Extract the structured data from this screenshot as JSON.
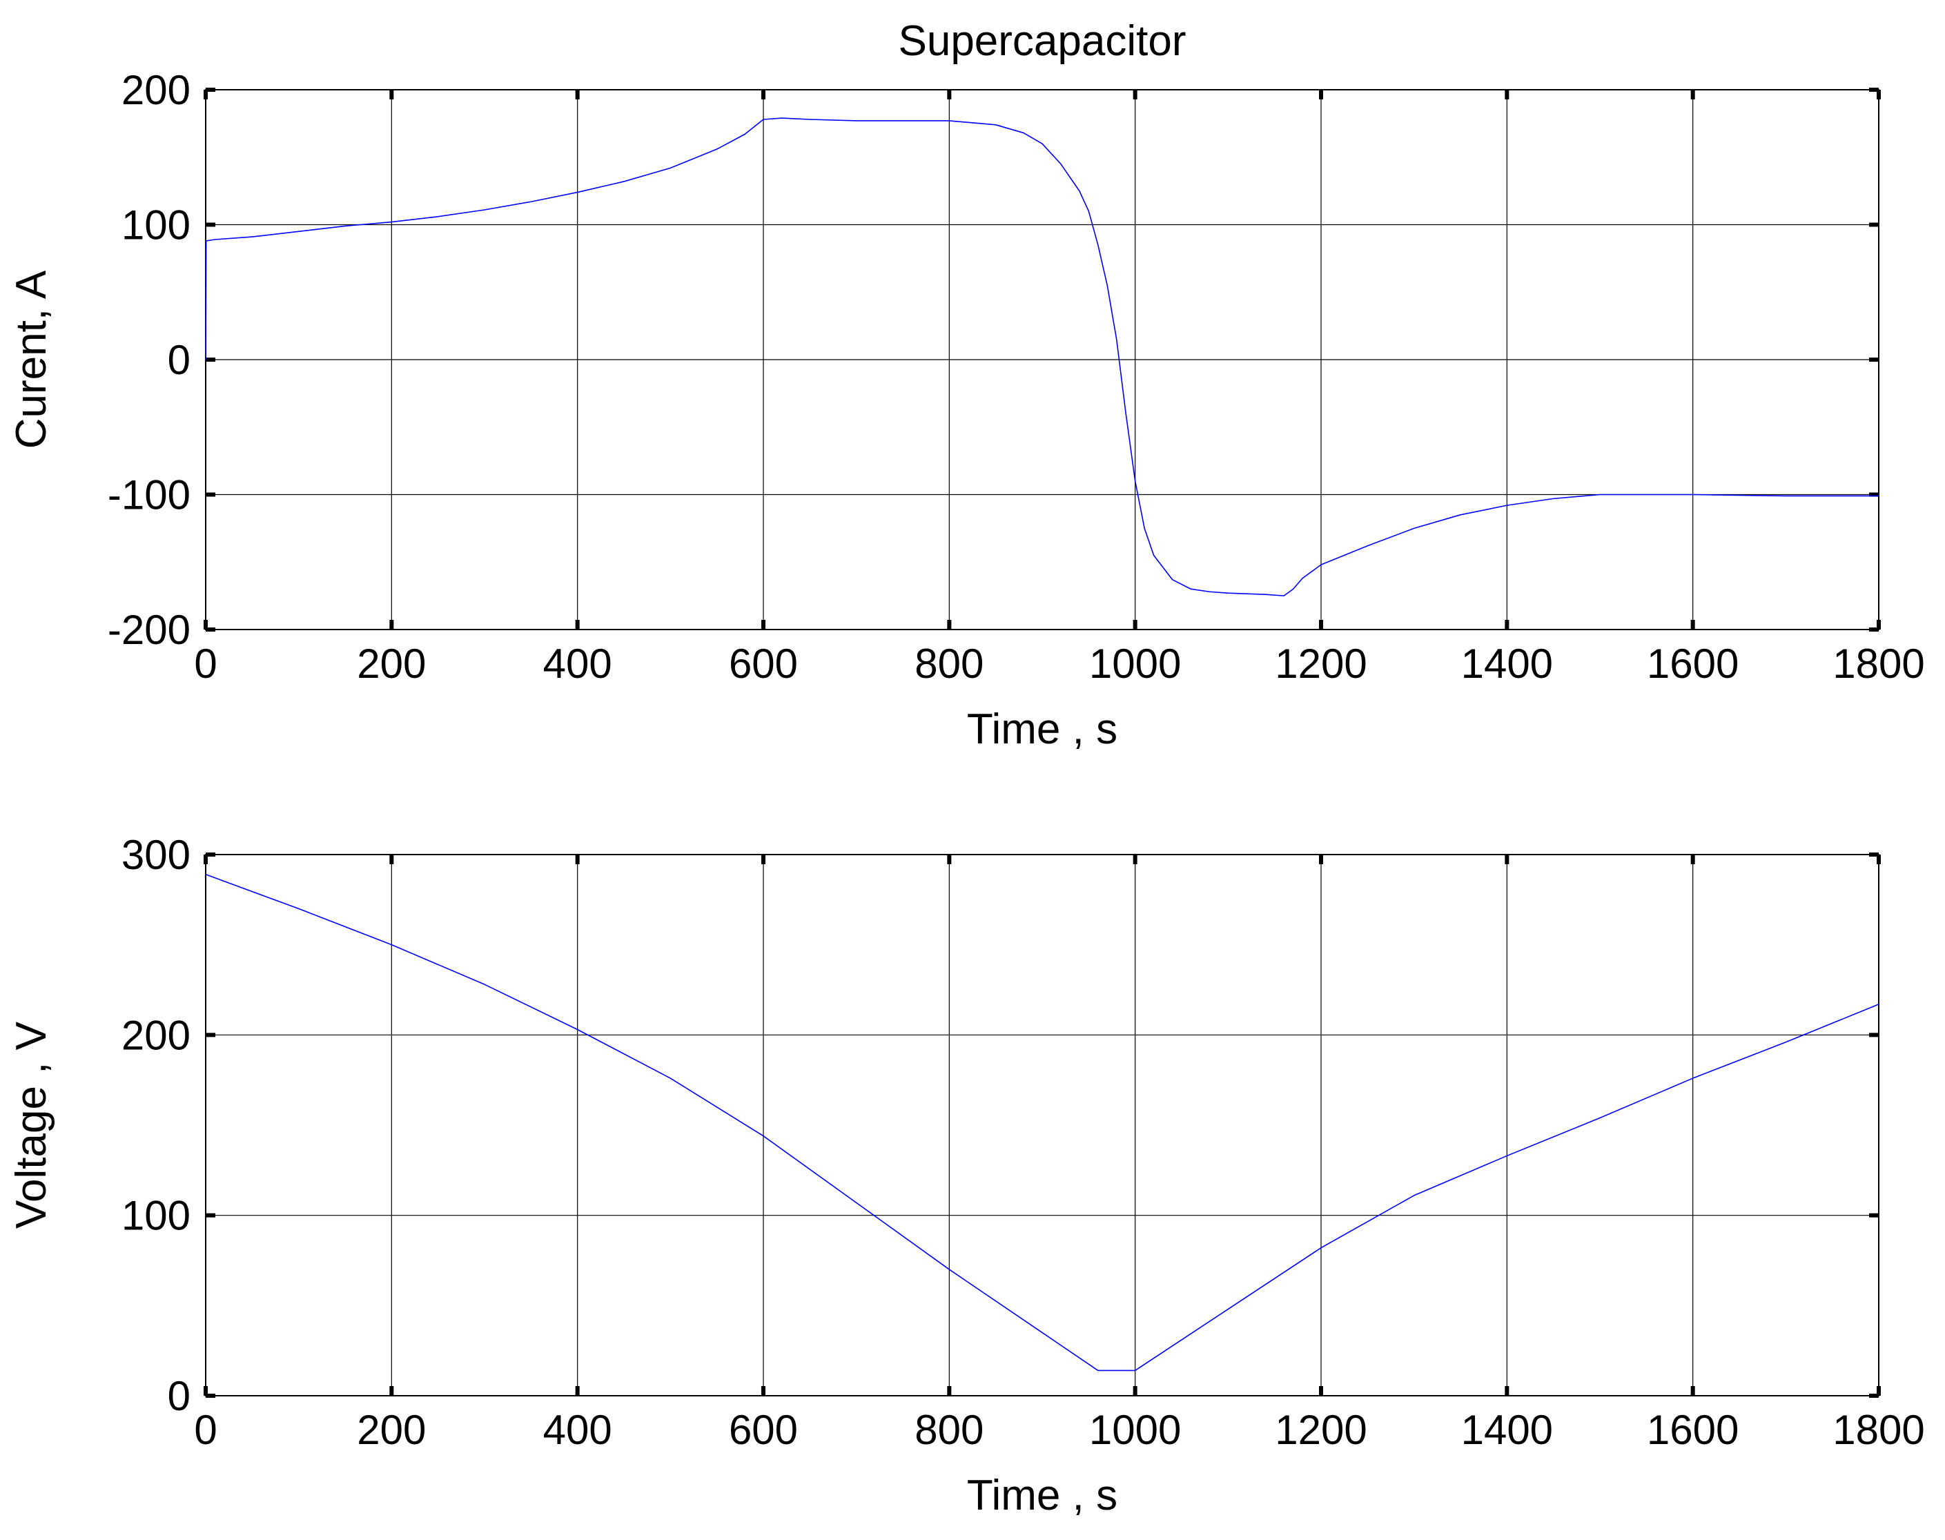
{
  "chart_data": [
    {
      "type": "line",
      "title": "Supercapacitor",
      "xlabel": "Time , s",
      "ylabel": "Curent, A",
      "xlim": [
        0,
        1800
      ],
      "ylim": [
        -200,
        200
      ],
      "xticks": [
        "0",
        "200",
        "400",
        "600",
        "800",
        "1000",
        "1200",
        "1400",
        "1600",
        "1800"
      ],
      "yticks": [
        "200",
        "100",
        "0",
        "-100",
        "-200"
      ],
      "grid": true,
      "line_color": "#0000ff",
      "series": [
        {
          "x": [
            0,
            0.5,
            10,
            50,
            100,
            150,
            200,
            250,
            300,
            350,
            400,
            450,
            500,
            550,
            580,
            600,
            620,
            650,
            700,
            750,
            800,
            850,
            880,
            900,
            920,
            940,
            950,
            960,
            970,
            980,
            990,
            1000,
            1010,
            1020,
            1040,
            1060,
            1080,
            1100,
            1140,
            1160,
            1170,
            1180,
            1200,
            1250,
            1300,
            1350,
            1400,
            1450,
            1500,
            1550,
            1600,
            1700,
            1800
          ],
          "y": [
            0,
            88,
            89,
            91,
            95,
            99,
            102,
            106,
            111,
            117,
            124,
            132,
            142,
            156,
            167,
            178,
            179,
            178,
            177,
            177,
            177,
            174,
            168,
            160,
            145,
            125,
            110,
            85,
            55,
            15,
            -40,
            -90,
            -125,
            -145,
            -163,
            -170,
            -172,
            -173,
            -174,
            -175,
            -170,
            -162,
            -152,
            -138,
            -125,
            -115,
            -108,
            -103,
            -100,
            -100,
            -100,
            -101,
            -101
          ]
        }
      ]
    },
    {
      "type": "line",
      "title": "",
      "xlabel": "Time , s",
      "ylabel": "Voltage , V",
      "xlim": [
        0,
        1800
      ],
      "ylim": [
        0,
        300
      ],
      "xticks": [
        "0",
        "200",
        "400",
        "600",
        "800",
        "1000",
        "1200",
        "1400",
        "1600",
        "1800"
      ],
      "yticks": [
        "300",
        "200",
        "100",
        "0"
      ],
      "grid": true,
      "line_color": "#0000ff",
      "series": [
        {
          "x": [
            0,
            100,
            200,
            300,
            400,
            500,
            600,
            700,
            800,
            900,
            960,
            1000,
            1100,
            1200,
            1300,
            1400,
            1500,
            1600,
            1700,
            1800
          ],
          "y": [
            289,
            270,
            250,
            228,
            203,
            176,
            144,
            107,
            70,
            35,
            14,
            14,
            48,
            82,
            111,
            133,
            154,
            176,
            196,
            217
          ]
        }
      ]
    }
  ]
}
